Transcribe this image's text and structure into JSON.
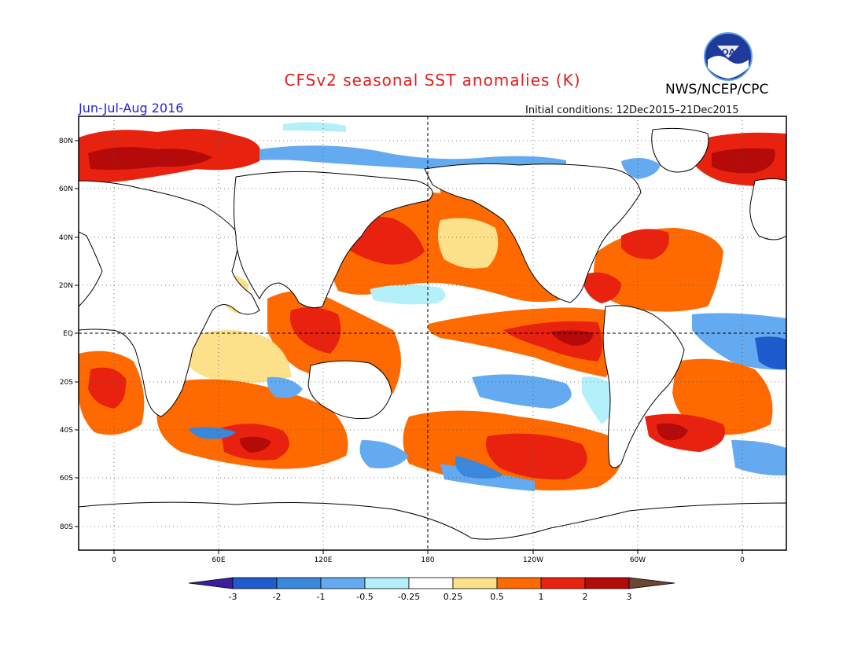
{
  "header": {
    "title": "CFSv2 seasonal SST anomalies (K)",
    "org": "NWS/NCEP/CPC",
    "period": "Jun-Jul-Aug 2016",
    "initial_conditions": "Initial conditions: 12Dec2015–21Dec2015",
    "logo_text": "NOAA"
  },
  "map": {
    "lat_labels": [
      "80N",
      "60N",
      "40N",
      "20N",
      "EQ",
      "20S",
      "40S",
      "60S",
      "80S"
    ],
    "lon_labels": [
      "0",
      "60E",
      "120E",
      "180",
      "120W",
      "60W",
      "0"
    ]
  },
  "colorbar": {
    "labels": [
      "-3",
      "-2",
      "-1",
      "-0.5",
      "-0.25",
      "0.25",
      "0.5",
      "1",
      "2",
      "3"
    ],
    "colors": {
      "lt_-3": "#3c1f9e",
      "-3_-2": "#1e5ccd",
      "-2_-1": "#3a87dc",
      "-1_-0.5": "#64aaf0",
      "-0.5_-0.25": "#b4f0fa",
      "-0.25_0.25": "#ffffff",
      "0.25_0.5": "#fde18a",
      "0.5_1": "#ff6a00",
      "1_2": "#e8220e",
      "2_3": "#b40a0a",
      "gt_3": "#6e4432"
    }
  }
}
